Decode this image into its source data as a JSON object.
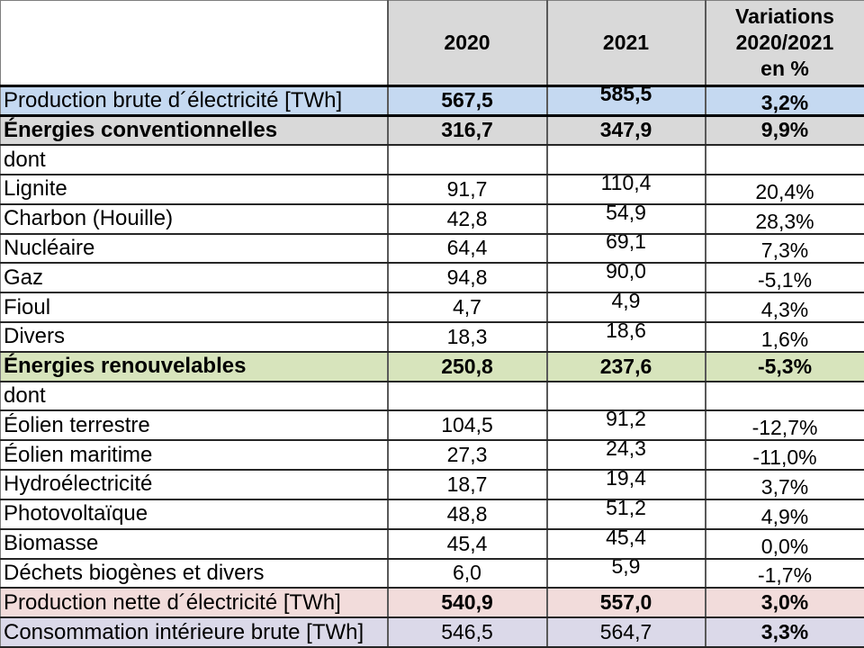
{
  "colors": {
    "header_gray": "#d9d9d9",
    "row_blue": "#c5d9f1",
    "row_green": "#d7e4bc",
    "row_pink": "#f2dcdb",
    "row_lavender": "#dbd9e9",
    "grid_vertical": "#595959",
    "grid_horizontal": "#262626",
    "text": "#000000"
  },
  "chart_data": {
    "type": "table",
    "title": "",
    "columns": [
      "",
      "2020",
      "2021",
      "Variations 2020/2021 en %"
    ],
    "unit": "TWh"
  },
  "table": {
    "header": {
      "corner": "",
      "col_2020": "2020",
      "col_2021": "2021",
      "variations_lines": [
        "Variations",
        "2020/2021",
        "en %"
      ]
    },
    "rows": [
      {
        "label": "Production brute d´électricité [TWh]",
        "y2020": "567,5",
        "y2021": "585,5",
        "variation": "3,2%",
        "style": "blue",
        "label_bold": false,
        "values_bold": true,
        "var_bold": true,
        "raised": true
      },
      {
        "label": "Énergies conventionnelles",
        "y2020": "316,7",
        "y2021": "347,9",
        "variation": "9,9%",
        "style": "gray",
        "label_bold": true,
        "values_bold": true,
        "var_bold": true,
        "raised": false
      },
      {
        "label": "dont",
        "y2020": "",
        "y2021": "",
        "variation": "",
        "style": "plain",
        "label_bold": false,
        "values_bold": false,
        "var_bold": false,
        "raised": false
      },
      {
        "label": "Lignite",
        "y2020": "91,7",
        "y2021": "110,4",
        "variation": "20,4%",
        "style": "plain",
        "label_bold": false,
        "values_bold": false,
        "var_bold": false,
        "raised": true
      },
      {
        "label": "Charbon (Houille)",
        "y2020": "42,8",
        "y2021": "54,9",
        "variation": "28,3%",
        "style": "plain",
        "label_bold": false,
        "values_bold": false,
        "var_bold": false,
        "raised": true
      },
      {
        "label": "Nucléaire",
        "y2020": "64,4",
        "y2021": "69,1",
        "variation": "7,3%",
        "style": "plain",
        "label_bold": false,
        "values_bold": false,
        "var_bold": false,
        "raised": true
      },
      {
        "label": "Gaz",
        "y2020": "94,8",
        "y2021": "90,0",
        "variation": "-5,1%",
        "style": "plain",
        "label_bold": false,
        "values_bold": false,
        "var_bold": false,
        "raised": true
      },
      {
        "label": "Fioul",
        "y2020": "4,7",
        "y2021": "4,9",
        "variation": "4,3%",
        "style": "plain",
        "label_bold": false,
        "values_bold": false,
        "var_bold": false,
        "raised": true
      },
      {
        "label": "Divers",
        "y2020": "18,3",
        "y2021": "18,6",
        "variation": "1,6%",
        "style": "plain",
        "label_bold": false,
        "values_bold": false,
        "var_bold": false,
        "raised": true
      },
      {
        "label": "Énergies renouvelables",
        "y2020": "250,8",
        "y2021": "237,6",
        "variation": "-5,3%",
        "style": "green",
        "label_bold": true,
        "values_bold": true,
        "var_bold": true,
        "raised": false
      },
      {
        "label": "dont",
        "y2020": "",
        "y2021": "",
        "variation": "",
        "style": "plain",
        "label_bold": false,
        "values_bold": false,
        "var_bold": false,
        "raised": false
      },
      {
        "label": "Éolien terrestre",
        "y2020": "104,5",
        "y2021": "91,2",
        "variation": "-12,7%",
        "style": "plain",
        "label_bold": false,
        "values_bold": false,
        "var_bold": false,
        "raised": true
      },
      {
        "label": "Éolien maritime",
        "y2020": "27,3",
        "y2021": "24,3",
        "variation": "-11,0%",
        "style": "plain",
        "label_bold": false,
        "values_bold": false,
        "var_bold": false,
        "raised": true
      },
      {
        "label": "Hydroélectricité",
        "y2020": "18,7",
        "y2021": "19,4",
        "variation": "3,7%",
        "style": "plain",
        "label_bold": false,
        "values_bold": false,
        "var_bold": false,
        "raised": true
      },
      {
        "label": "Photovoltaïque",
        "y2020": "48,8",
        "y2021": "51,2",
        "variation": "4,9%",
        "style": "plain",
        "label_bold": false,
        "values_bold": false,
        "var_bold": false,
        "raised": true
      },
      {
        "label": "Biomasse",
        "y2020": "45,4",
        "y2021": "45,4",
        "variation": "0,0%",
        "style": "plain",
        "label_bold": false,
        "values_bold": false,
        "var_bold": false,
        "raised": true
      },
      {
        "label": "Déchets biogènes et divers",
        "y2020": "6,0",
        "y2021": "5,9",
        "variation": "-1,7%",
        "style": "plain",
        "label_bold": false,
        "values_bold": false,
        "var_bold": false,
        "raised": true
      },
      {
        "label": "Production nette d´électricité [TWh]",
        "y2020": "540,9",
        "y2021": "557,0",
        "variation": "3,0%",
        "style": "pink",
        "label_bold": false,
        "values_bold": true,
        "var_bold": true,
        "raised": false
      },
      {
        "label": "Consommation intérieure brute [TWh]",
        "y2020": "546,5",
        "y2021": "564,7",
        "variation": "3,3%",
        "style": "lavender",
        "label_bold": false,
        "values_bold": false,
        "var_bold": true,
        "raised": false
      }
    ]
  }
}
